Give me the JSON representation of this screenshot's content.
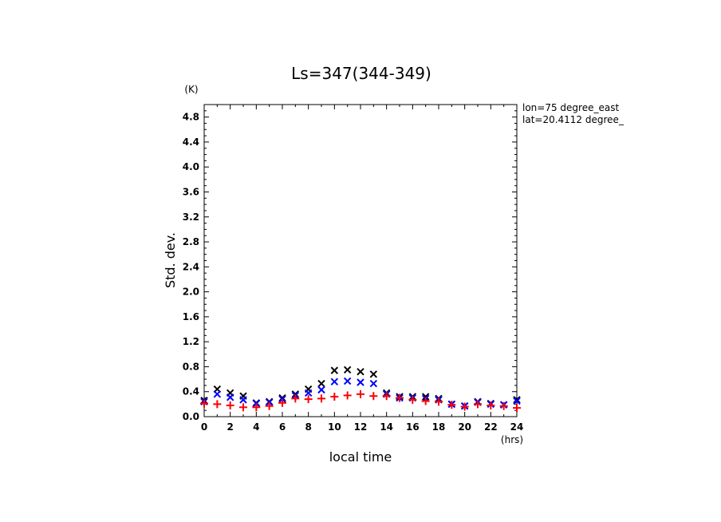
{
  "chart_data": {
    "type": "scatter",
    "title": "Ls=347(344-349)",
    "xlabel": "local time",
    "xunit": "(hrs)",
    "ylabel": "Std. dev.",
    "yunit": "(K)",
    "xlim": [
      0,
      24
    ],
    "ylim": [
      0,
      5.0
    ],
    "xticks": [
      "0",
      "2",
      "4",
      "6",
      "8",
      "10",
      "12",
      "14",
      "16",
      "18",
      "20",
      "22",
      "24"
    ],
    "yticks": [
      "0.0",
      "0.4",
      "0.8",
      "1.2",
      "1.6",
      "2.0",
      "2.4",
      "2.8",
      "3.2",
      "3.6",
      "4.0",
      "4.4",
      "4.8"
    ],
    "annotations": [
      "lon=75 degree_east",
      "lat=20.4112 degree_"
    ],
    "series": [
      {
        "marker": "x",
        "color": "#000000",
        "x": [
          0,
          1,
          2,
          3,
          4,
          5,
          6,
          7,
          8,
          9,
          10,
          11,
          12,
          13,
          14,
          15,
          16,
          17,
          18,
          19,
          20,
          21,
          22,
          23,
          24
        ],
        "values": [
          0.26,
          0.44,
          0.38,
          0.33,
          0.22,
          0.24,
          0.3,
          0.36,
          0.44,
          0.53,
          0.74,
          0.75,
          0.72,
          0.68,
          0.38,
          0.32,
          0.32,
          0.32,
          0.29,
          0.2,
          0.17,
          0.24,
          0.21,
          0.19,
          0.27
        ]
      },
      {
        "marker": "x",
        "color": "#0000ff",
        "x": [
          0,
          1,
          2,
          3,
          4,
          5,
          6,
          7,
          8,
          9,
          10,
          11,
          12,
          13,
          14,
          15,
          16,
          17,
          18,
          19,
          20,
          21,
          22,
          23,
          24
        ],
        "values": [
          0.24,
          0.36,
          0.31,
          0.27,
          0.21,
          0.23,
          0.28,
          0.34,
          0.38,
          0.43,
          0.56,
          0.57,
          0.55,
          0.53,
          0.36,
          0.3,
          0.3,
          0.29,
          0.27,
          0.2,
          0.17,
          0.23,
          0.2,
          0.19,
          0.25
        ]
      },
      {
        "marker": "+",
        "color": "#ff0000",
        "x": [
          0,
          1,
          2,
          3,
          4,
          5,
          6,
          7,
          8,
          9,
          10,
          11,
          12,
          13,
          14,
          15,
          16,
          17,
          18,
          19,
          20,
          21,
          22,
          23,
          24
        ],
        "values": [
          0.21,
          0.2,
          0.18,
          0.15,
          0.15,
          0.17,
          0.22,
          0.29,
          0.28,
          0.29,
          0.32,
          0.34,
          0.36,
          0.33,
          0.33,
          0.3,
          0.27,
          0.25,
          0.24,
          0.19,
          0.16,
          0.2,
          0.18,
          0.17,
          0.14
        ]
      }
    ]
  }
}
